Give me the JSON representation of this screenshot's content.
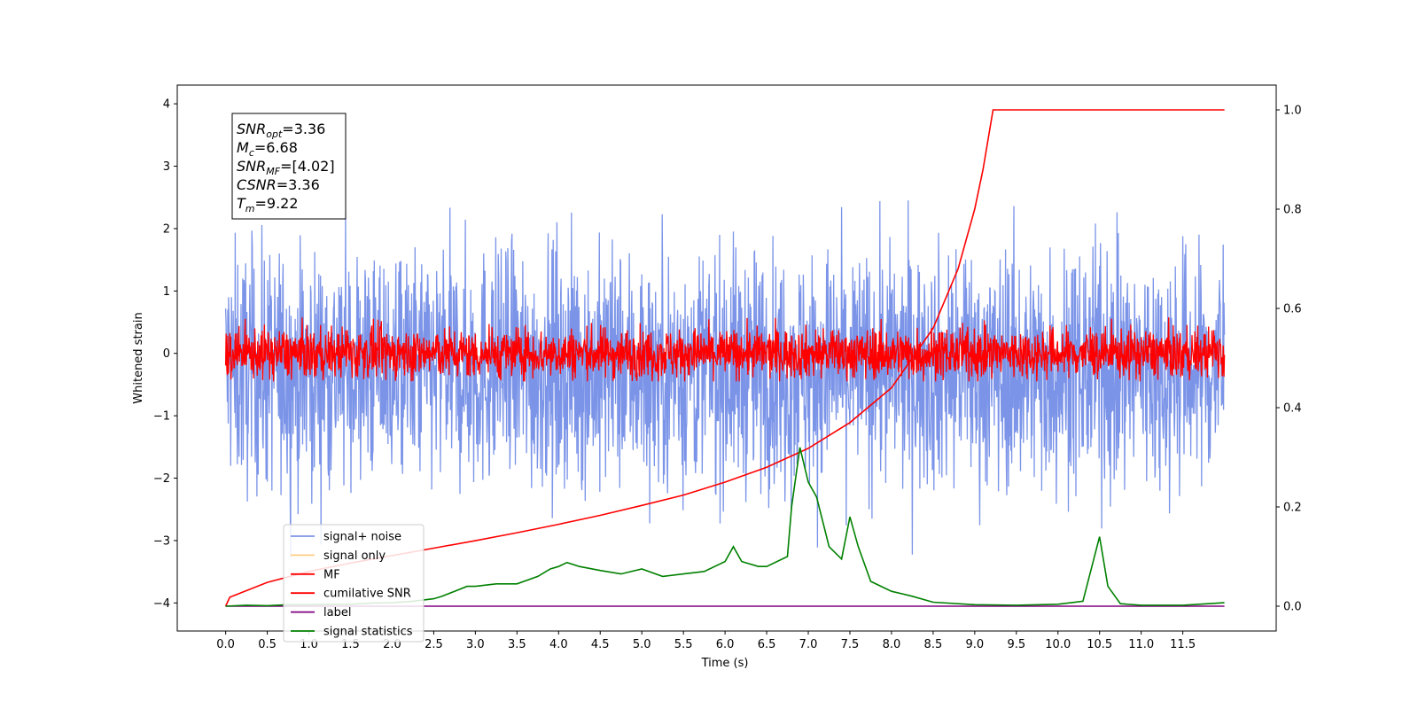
{
  "chart_data": {
    "type": "line",
    "xlabel": "Time (s)",
    "ylabel": "Whitened strain",
    "xlim": [
      -0.5818,
      12.622
    ],
    "ylim": [
      -4.45,
      4.3
    ],
    "y2lim": [
      -0.05,
      1.05
    ],
    "x_ticks": [
      "0.0",
      "0.5",
      "1.0",
      "1.5",
      "2.0",
      "2.5",
      "3.0",
      "3.5",
      "4.0",
      "4.5",
      "5.0",
      "5.5",
      "6.0",
      "6.5",
      "7.0",
      "7.5",
      "8.0",
      "8.5",
      "9.0",
      "9.5",
      "10.0",
      "10.5",
      "11.0",
      "11.5"
    ],
    "y_ticks": [
      "−4",
      "−3",
      "−2",
      "−1",
      "0",
      "1",
      "2",
      "3",
      "4"
    ],
    "y2_ticks": [
      "0.0",
      "0.2",
      "0.4",
      "0.6",
      "0.8",
      "1.0"
    ],
    "grid": false,
    "legend_position": "lower-left",
    "annotation": {
      "lines": [
        {
          "base": "SNR",
          "sub": "opt",
          "value": "=3.36"
        },
        {
          "base": "M",
          "sub": "c",
          "value": "=6.68"
        },
        {
          "base": "SNR",
          "sub": "MF",
          "value": "=[4.02]"
        },
        {
          "base": "CSNR",
          "sub": "",
          "value": "=3.36"
        },
        {
          "base": "T",
          "sub": "m",
          "value": "=9.22"
        }
      ]
    },
    "series": [
      {
        "name": "signal+ noise",
        "color": "#7b94e8",
        "axis": "left",
        "kind": "noise",
        "x_range": [
          0,
          12
        ],
        "approx_range": [
          -2.4,
          2.4
        ],
        "mean": -0.25
      },
      {
        "name": "signal only",
        "color": "#ffcc80",
        "axis": "left",
        "kind": "flat",
        "value": 0
      },
      {
        "name": "MF",
        "color": "#ff0000",
        "axis": "left",
        "kind": "noise",
        "x_range": [
          0,
          12
        ],
        "approx_range": [
          -0.45,
          0.85
        ],
        "mean": 0.0
      },
      {
        "name": "cumilative SNR",
        "color": "#ff0000",
        "axis": "right",
        "kind": "curve",
        "x": [
          0.0,
          0.05,
          0.5,
          1.0,
          1.5,
          2.0,
          2.5,
          3.0,
          3.5,
          4.0,
          4.5,
          5.0,
          5.5,
          6.0,
          6.5,
          7.0,
          7.5,
          8.0,
          8.5,
          8.8,
          9.0,
          9.1,
          9.22,
          12.0
        ],
        "y": [
          0.0,
          0.018,
          0.048,
          0.07,
          0.087,
          0.102,
          0.117,
          0.132,
          0.148,
          0.165,
          0.183,
          0.203,
          0.224,
          0.25,
          0.28,
          0.318,
          0.37,
          0.44,
          0.56,
          0.68,
          0.8,
          0.88,
          1.0,
          1.0
        ]
      },
      {
        "name": "label",
        "color": "#800080",
        "axis": "right",
        "kind": "flat",
        "value": 0.0
      },
      {
        "name": "signal statistics",
        "color": "#008000",
        "axis": "right",
        "kind": "curve",
        "x": [
          0.0,
          0.25,
          0.5,
          0.75,
          1.0,
          1.25,
          1.5,
          1.75,
          2.0,
          2.25,
          2.5,
          2.6,
          2.75,
          2.9,
          3.0,
          3.25,
          3.5,
          3.75,
          3.9,
          4.0,
          4.1,
          4.25,
          4.5,
          4.75,
          5.0,
          5.25,
          5.5,
          5.75,
          6.0,
          6.1,
          6.2,
          6.4,
          6.5,
          6.75,
          6.8,
          6.9,
          7.0,
          7.1,
          7.25,
          7.4,
          7.5,
          7.6,
          7.75,
          8.0,
          8.25,
          8.5,
          9.0,
          9.5,
          10.0,
          10.3,
          10.5,
          10.6,
          10.75,
          11.0,
          11.5,
          12.0
        ],
        "y": [
          0.0,
          0.002,
          0.001,
          0.003,
          0.003,
          0.004,
          0.004,
          0.006,
          0.007,
          0.01,
          0.015,
          0.02,
          0.03,
          0.04,
          0.04,
          0.045,
          0.045,
          0.06,
          0.075,
          0.08,
          0.088,
          0.08,
          0.072,
          0.065,
          0.075,
          0.06,
          0.065,
          0.07,
          0.09,
          0.12,
          0.09,
          0.08,
          0.08,
          0.1,
          0.2,
          0.32,
          0.25,
          0.22,
          0.12,
          0.095,
          0.18,
          0.12,
          0.05,
          0.03,
          0.02,
          0.008,
          0.003,
          0.002,
          0.004,
          0.01,
          0.14,
          0.04,
          0.005,
          0.002,
          0.002,
          0.007
        ]
      }
    ]
  }
}
